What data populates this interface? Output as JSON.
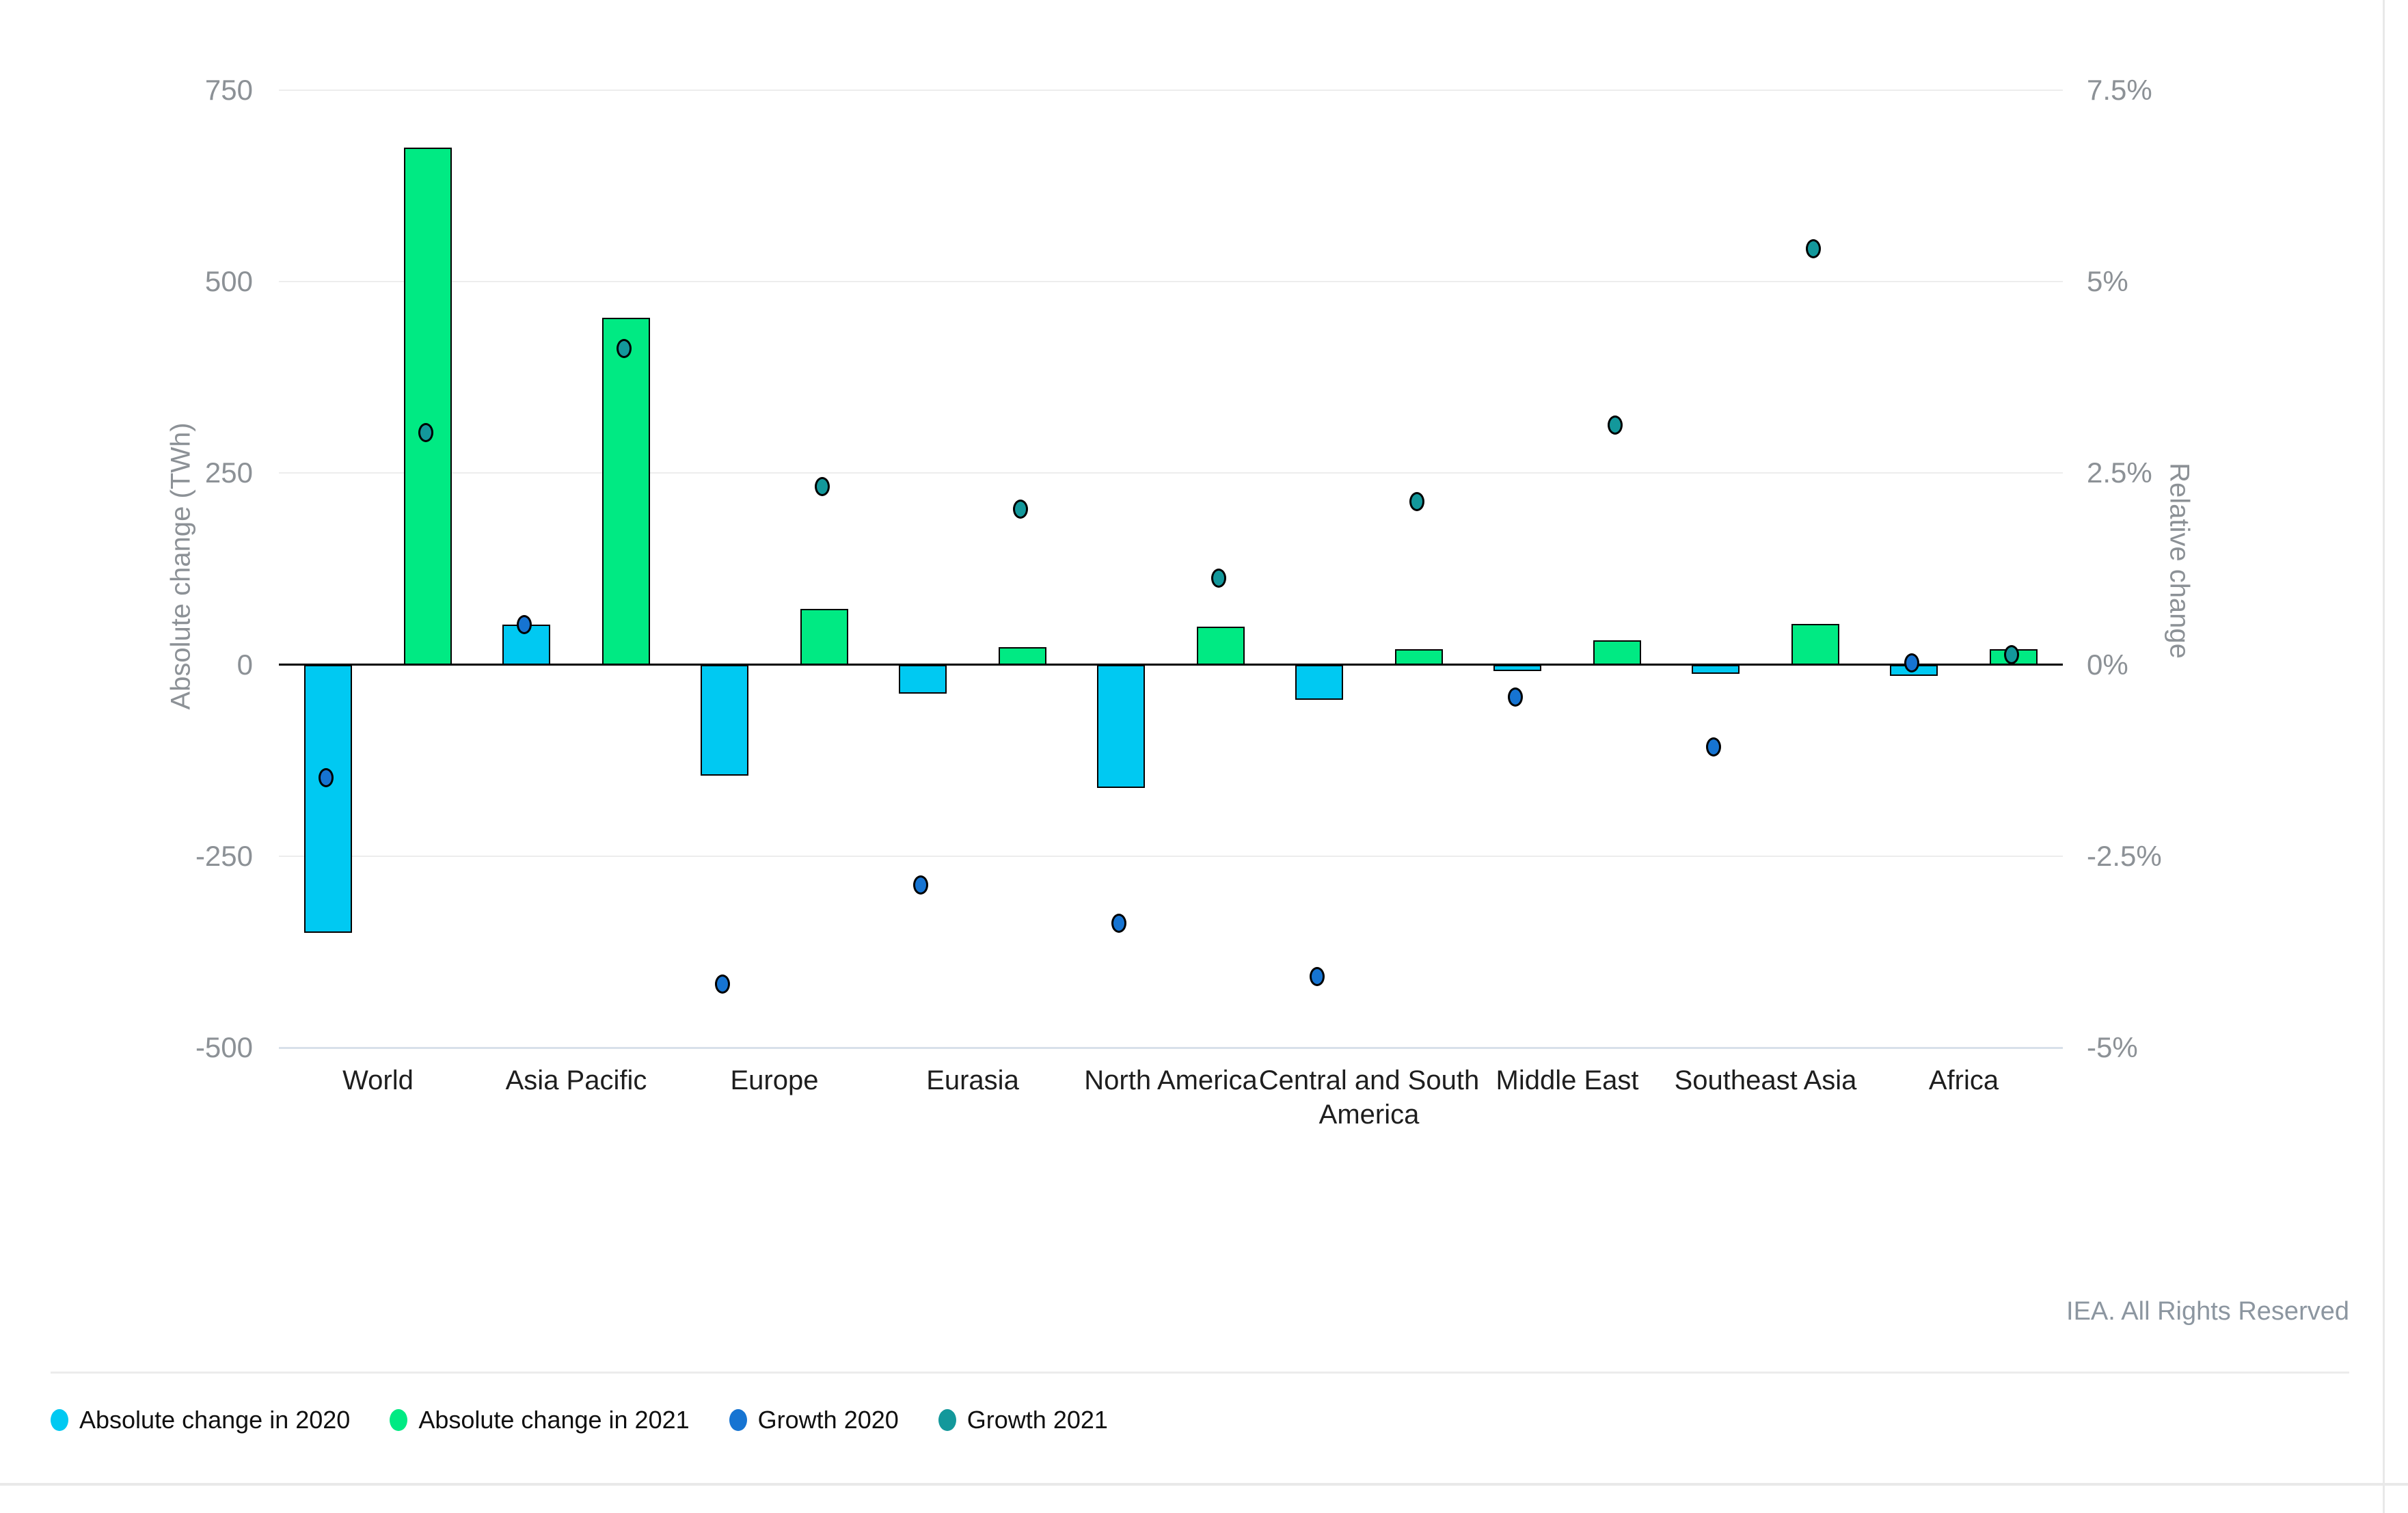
{
  "chart_data": {
    "type": "bar",
    "subtype": "dual-axis bar + scatter combo",
    "categories": [
      "World",
      "Asia Pacific",
      "Europe",
      "Eurasia",
      "North America",
      "Central and South America",
      "Middle East",
      "Southeast Asia",
      "Africa"
    ],
    "series": [
      {
        "name": "Absolute change in 2020",
        "type": "bar",
        "axis": "left",
        "unit": "TWh",
        "color": "#00C9F2",
        "values": [
          -350,
          52,
          -145,
          -38,
          -161,
          -46,
          -8,
          -12,
          -15
        ]
      },
      {
        "name": "Absolute change in 2021",
        "type": "bar",
        "axis": "left",
        "unit": "TWh",
        "color": "#00EA83",
        "values": [
          675,
          453,
          73,
          23,
          50,
          20,
          32,
          53,
          20
        ]
      },
      {
        "name": "Growth 2020",
        "type": "scatter",
        "axis": "right",
        "unit": "%",
        "color": "#1674D2",
        "values": [
          -1.5,
          0.5,
          -4.2,
          -2.9,
          -3.4,
          -4.1,
          -0.45,
          -1.1,
          0.0
        ]
      },
      {
        "name": "Growth 2021",
        "type": "scatter",
        "axis": "right",
        "unit": "%",
        "color": "#13989B",
        "values": [
          3.0,
          4.1,
          2.3,
          2.0,
          1.1,
          2.1,
          3.1,
          5.4,
          0.1
        ]
      }
    ],
    "title": "",
    "xlabel": "",
    "ylabel": "Absolute change (TWh)",
    "ylabel_right": "Relative change",
    "ylim": [
      -500,
      750
    ],
    "ylim_right": [
      -5,
      7.5
    ],
    "grid": true,
    "legend_position": "bottom-left"
  },
  "left_axis": {
    "title": "Absolute change (TWh)",
    "ticks": [
      "750",
      "500",
      "250",
      "0",
      "-250",
      "-500"
    ]
  },
  "right_axis": {
    "title": "Relative change",
    "ticks": [
      "7.5%",
      "5%",
      "2.5%",
      "0%",
      "-2.5%",
      "-5%"
    ]
  },
  "legend": {
    "items": [
      {
        "label": "Absolute change in 2020",
        "color": "#00C9F2"
      },
      {
        "label": "Absolute change in 2021",
        "color": "#00EA83"
      },
      {
        "label": "Growth 2020",
        "color": "#1674D2"
      },
      {
        "label": "Growth 2021",
        "color": "#13989B"
      }
    ]
  },
  "footer": {
    "credit": "IEA. All Rights Reserved"
  },
  "styles": {
    "grid_color": "#ededed",
    "zero_line_color": "#000000",
    "baseline_color": "#d8e0ea",
    "tick_text_color": "#8c9196",
    "x_label_color": "#1e1e1e",
    "footer_color": "#8c96a0"
  }
}
